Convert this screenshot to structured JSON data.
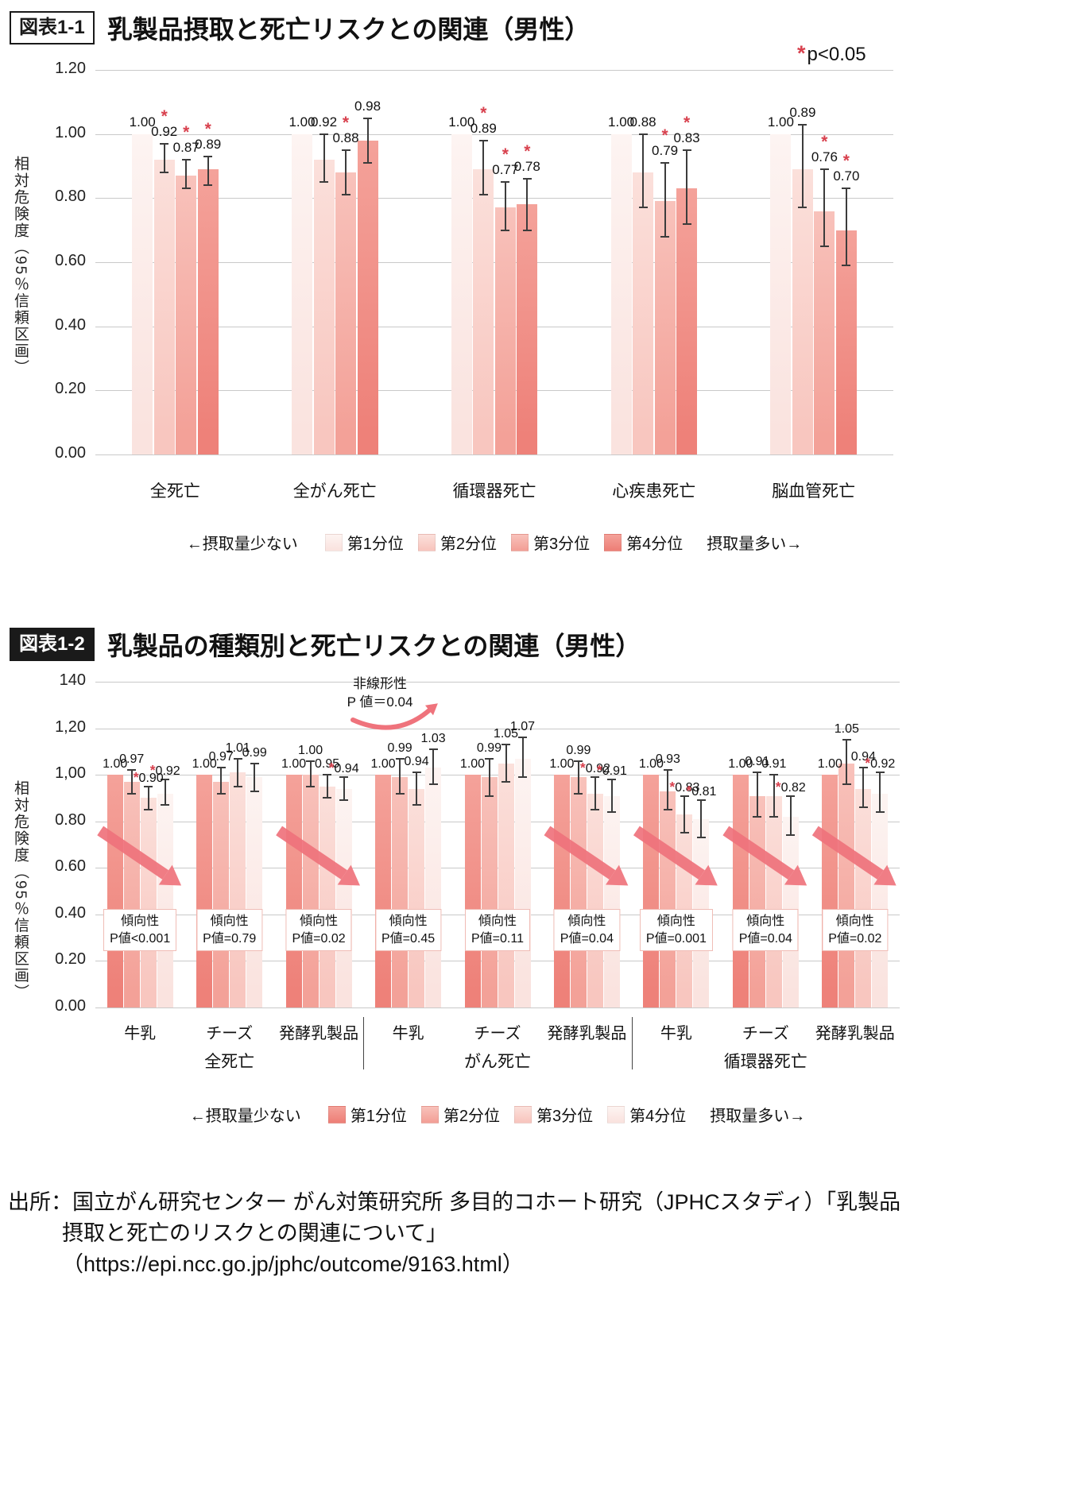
{
  "colors": {
    "asterisk": "#d8414e",
    "arrow": "#ef737c",
    "grid": "#c9c9c9"
  },
  "chart_data": [
    {
      "type": "bar",
      "badge": "図表1-1",
      "title": "乳製品摂取と死亡リスクとの関連（男性）",
      "note_star": "*",
      "note_text": "p<0.05",
      "ylabel": "相対危険度（95％信頼区画）",
      "ylim": [
        0,
        1.2
      ],
      "yticks": [
        {
          "label": "1.20",
          "v": 1.2
        },
        {
          "label": "1.00",
          "v": 1.0
        },
        {
          "label": "0.80",
          "v": 0.8
        },
        {
          "label": "0.60",
          "v": 0.6
        },
        {
          "label": "0.40",
          "v": 0.4
        },
        {
          "label": "0.20",
          "v": 0.2
        },
        {
          "label": "0.00",
          "v": 0.0
        }
      ],
      "quartile_colors": [
        {
          "top": "#fdf4f2",
          "bottom": "#fae3df"
        },
        {
          "top": "#fbe0db",
          "bottom": "#f8c6bf"
        },
        {
          "top": "#f8c2bb",
          "bottom": "#f3a198"
        },
        {
          "top": "#f4a29a",
          "bottom": "#ee8179"
        }
      ],
      "legend": {
        "left": "←摂取量少ない",
        "items": [
          "第1分位",
          "第2分位",
          "第3分位",
          "第4分位"
        ],
        "right": "摂取量多い→"
      },
      "groups": [
        {
          "label": "全死亡",
          "bars": [
            {
              "v": 1.0
            },
            {
              "v": 0.92,
              "lo": 0.88,
              "hi": 0.97,
              "sig": true
            },
            {
              "v": 0.87,
              "lo": 0.83,
              "hi": 0.92,
              "sig": true
            },
            {
              "v": 0.89,
              "lo": 0.84,
              "hi": 0.93,
              "sig": true
            }
          ]
        },
        {
          "label": "全がん死亡",
          "bars": [
            {
              "v": 1.0
            },
            {
              "v": 0.92,
              "lo": 0.85,
              "hi": 1.0
            },
            {
              "v": 0.88,
              "lo": 0.81,
              "hi": 0.95,
              "sig": true
            },
            {
              "v": 0.98,
              "lo": 0.91,
              "hi": 1.05
            }
          ]
        },
        {
          "label": "循環器死亡",
          "bars": [
            {
              "v": 1.0
            },
            {
              "v": 0.89,
              "lo": 0.81,
              "hi": 0.98,
              "sig": true
            },
            {
              "v": 0.77,
              "lo": 0.7,
              "hi": 0.85,
              "sig": true
            },
            {
              "v": 0.78,
              "lo": 0.7,
              "hi": 0.86,
              "sig": true
            }
          ]
        },
        {
          "label": "心疾患死亡",
          "bars": [
            {
              "v": 1.0
            },
            {
              "v": 0.88,
              "lo": 0.77,
              "hi": 1.0
            },
            {
              "v": 0.79,
              "lo": 0.68,
              "hi": 0.91,
              "sig": true
            },
            {
              "v": 0.83,
              "lo": 0.72,
              "hi": 0.95,
              "sig": true
            }
          ]
        },
        {
          "label": "脳血管死亡",
          "bars": [
            {
              "v": 1.0
            },
            {
              "v": 0.89,
              "lo": 0.77,
              "hi": 1.03
            },
            {
              "v": 0.76,
              "lo": 0.65,
              "hi": 0.89,
              "sig": true
            },
            {
              "v": 0.7,
              "lo": 0.59,
              "hi": 0.83,
              "sig": true
            }
          ]
        }
      ]
    },
    {
      "type": "bar",
      "badge": "図表1-2",
      "title": "乳製品の種類別と死亡リスクとの関連（男性）",
      "ylabel": "相対危険度（95％信頼区画）",
      "ylim": [
        0,
        1.4
      ],
      "yticks": [
        {
          "label": "140",
          "v": 1.4
        },
        {
          "label": "1,20",
          "v": 1.2
        },
        {
          "label": "1,00",
          "v": 1.0
        },
        {
          "label": "0.80",
          "v": 0.8
        },
        {
          "label": "0.60",
          "v": 0.6
        },
        {
          "label": "0.40",
          "v": 0.4
        },
        {
          "label": "0.20",
          "v": 0.2
        },
        {
          "label": "0.00",
          "v": 0.0
        }
      ],
      "quartile_colors": [
        {
          "top": "#f4a29a",
          "bottom": "#ee8179"
        },
        {
          "top": "#f8c2bb",
          "bottom": "#f3a198"
        },
        {
          "top": "#fbe0db",
          "bottom": "#f8c6bf"
        },
        {
          "top": "#fdf4f2",
          "bottom": "#fae3df"
        }
      ],
      "legend": {
        "left": "←摂取量少ない",
        "items": [
          "第1分位",
          "第2分位",
          "第3分位",
          "第4分位"
        ],
        "right": "摂取量多い→"
      },
      "annotation": {
        "lines": [
          "非線形性",
          "P 値＝0.04"
        ]
      },
      "categories": [
        {
          "label": "全死亡",
          "products": [
            {
              "label": "牛乳",
              "trend": [
                "傾向性",
                "P値<0.001"
              ],
              "arrow": true,
              "bars": [
                {
                  "v": 1.0
                },
                {
                  "v": 0.97,
                  "lo": 0.92,
                  "hi": 1.02
                },
                {
                  "v": 0.9,
                  "lo": 0.85,
                  "hi": 0.95,
                  "sig": true
                },
                {
                  "v": 0.92,
                  "lo": 0.87,
                  "hi": 0.98,
                  "sig": true
                }
              ]
            },
            {
              "label": "チーズ",
              "trend": [
                "傾向性",
                "P値=0.79"
              ],
              "arrow": false,
              "bars": [
                {
                  "v": 1.0
                },
                {
                  "v": 0.97,
                  "lo": 0.92,
                  "hi": 1.03
                },
                {
                  "v": 1.01,
                  "lo": 0.95,
                  "hi": 1.07
                },
                {
                  "v": 0.99,
                  "lo": 0.93,
                  "hi": 1.05
                }
              ]
            },
            {
              "label": "発酵乳製品",
              "trend": [
                "傾向性",
                "P値=0.02"
              ],
              "arrow": true,
              "bars": [
                {
                  "v": 1.0
                },
                {
                  "v": 1.0,
                  "lo": 0.95,
                  "hi": 1.06
                },
                {
                  "v": 0.95,
                  "lo": 0.9,
                  "hi": 1.0
                },
                {
                  "v": 0.94,
                  "lo": 0.89,
                  "hi": 0.99,
                  "sig": true
                }
              ]
            }
          ]
        },
        {
          "label": "がん死亡",
          "products": [
            {
              "label": "牛乳",
              "trend": [
                "傾向性",
                "P値=0.45"
              ],
              "arrow": false,
              "bars": [
                {
                  "v": 1.0
                },
                {
                  "v": 0.99,
                  "lo": 0.92,
                  "hi": 1.07
                },
                {
                  "v": 0.94,
                  "lo": 0.87,
                  "hi": 1.01
                },
                {
                  "v": 1.03,
                  "lo": 0.96,
                  "hi": 1.11
                }
              ]
            },
            {
              "label": "チーズ",
              "trend": [
                "傾向性",
                "P値=0.11"
              ],
              "arrow": false,
              "bars": [
                {
                  "v": 1.0
                },
                {
                  "v": 0.99,
                  "lo": 0.91,
                  "hi": 1.07
                },
                {
                  "v": 1.05,
                  "lo": 0.97,
                  "hi": 1.13
                },
                {
                  "v": 1.07,
                  "lo": 0.99,
                  "hi": 1.16
                }
              ]
            },
            {
              "label": "発酵乳製品",
              "trend": [
                "傾向性",
                "P値=0.04"
              ],
              "arrow": true,
              "bars": [
                {
                  "v": 1.0
                },
                {
                  "v": 0.99,
                  "lo": 0.92,
                  "hi": 1.06
                },
                {
                  "v": 0.92,
                  "lo": 0.85,
                  "hi": 0.99,
                  "sig": true
                },
                {
                  "v": 0.91,
                  "lo": 0.84,
                  "hi": 0.98,
                  "sig": true
                }
              ]
            }
          ]
        },
        {
          "label": "循環器死亡",
          "products": [
            {
              "label": "牛乳",
              "trend": [
                "傾向性",
                "P値=0.001"
              ],
              "arrow": true,
              "bars": [
                {
                  "v": 1.0
                },
                {
                  "v": 0.93,
                  "lo": 0.85,
                  "hi": 1.02
                },
                {
                  "v": 0.83,
                  "lo": 0.75,
                  "hi": 0.91,
                  "sig": true
                },
                {
                  "v": 0.81,
                  "lo": 0.73,
                  "hi": 0.89,
                  "sig": true
                }
              ]
            },
            {
              "label": "チーズ",
              "trend": [
                "傾向性",
                "P値=0.04"
              ],
              "arrow": true,
              "bars": [
                {
                  "v": 1.0
                },
                {
                  "v": 0.91,
                  "lo": 0.82,
                  "hi": 1.01
                },
                {
                  "v": 0.91,
                  "lo": 0.82,
                  "hi": 1.0
                },
                {
                  "v": 0.82,
                  "lo": 0.74,
                  "hi": 0.91,
                  "sig": true
                }
              ]
            },
            {
              "label": "発酵乳製品",
              "trend": [
                "傾向性",
                "P値=0.02"
              ],
              "arrow": true,
              "bars": [
                {
                  "v": 1.0
                },
                {
                  "v": 1.05,
                  "lo": 0.96,
                  "hi": 1.15
                },
                {
                  "v": 0.94,
                  "lo": 0.86,
                  "hi": 1.03
                },
                {
                  "v": 0.92,
                  "lo": 0.84,
                  "hi": 1.01,
                  "sig": true
                }
              ]
            }
          ]
        }
      ]
    }
  ],
  "source": {
    "lines": [
      "出所：国立がん研究センター がん対策研究所 多目的コホート研究（JPHCスタディ）「乳製品",
      "摂取と死亡のリスクとの関連について」",
      "（https://epi.ncc.go.jp/jphc/outcome/9163.html）"
    ]
  }
}
